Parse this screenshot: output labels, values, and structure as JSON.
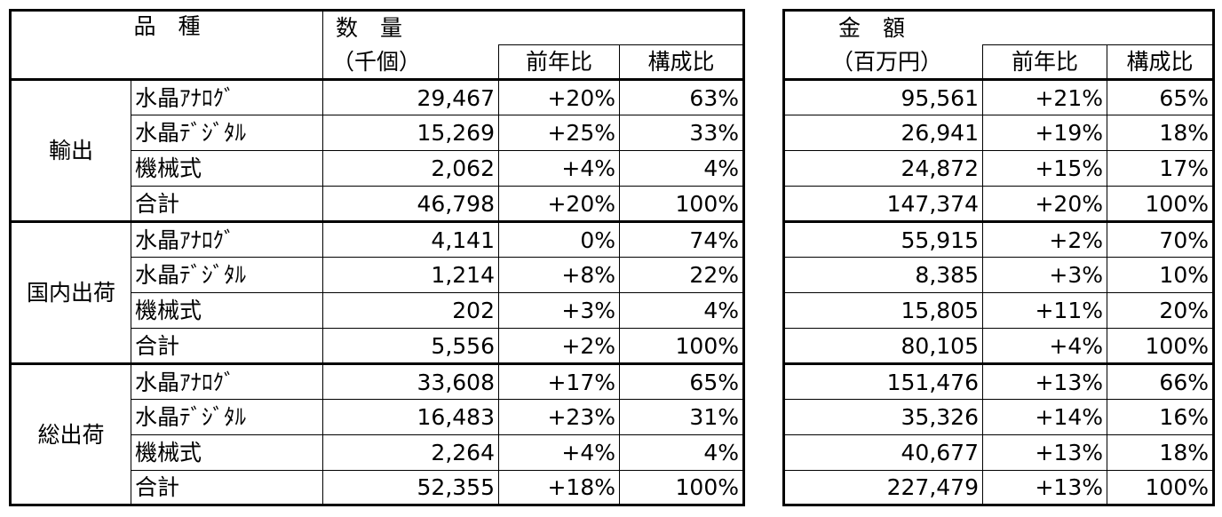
{
  "headers": {
    "hinshu": "品　種",
    "suryo": "数　量",
    "suryo_unit": "（千個）",
    "kingaku": "金　額",
    "kingaku_unit": "（百万円）",
    "yoy": "前年比",
    "share": "構成比"
  },
  "sections": [
    {
      "category": "輸出",
      "rows": [
        {
          "item": "水晶ｱﾅﾛｸﾞ",
          "qty": "29,467",
          "qty_yoy": "+20%",
          "qty_share": "63%",
          "amt": "95,561",
          "amt_yoy": "+21%",
          "amt_share": "65%"
        },
        {
          "item": "水晶ﾃﾞｼﾞﾀﾙ",
          "qty": "15,269",
          "qty_yoy": "+25%",
          "qty_share": "33%",
          "amt": "26,941",
          "amt_yoy": "+19%",
          "amt_share": "18%"
        },
        {
          "item": "機械式",
          "qty": "2,062",
          "qty_yoy": "+4%",
          "qty_share": "4%",
          "amt": "24,872",
          "amt_yoy": "+15%",
          "amt_share": "17%"
        },
        {
          "item": "合計",
          "qty": "46,798",
          "qty_yoy": "+20%",
          "qty_share": "100%",
          "amt": "147,374",
          "amt_yoy": "+20%",
          "amt_share": "100%"
        }
      ]
    },
    {
      "category": "国内出荷",
      "rows": [
        {
          "item": "水晶ｱﾅﾛｸﾞ",
          "qty": "4,141",
          "qty_yoy": "0%",
          "qty_share": "74%",
          "amt": "55,915",
          "amt_yoy": "+2%",
          "amt_share": "70%"
        },
        {
          "item": "水晶ﾃﾞｼﾞﾀﾙ",
          "qty": "1,214",
          "qty_yoy": "+8%",
          "qty_share": "22%",
          "amt": "8,385",
          "amt_yoy": "+3%",
          "amt_share": "10%"
        },
        {
          "item": "機械式",
          "qty": "202",
          "qty_yoy": "+3%",
          "qty_share": "4%",
          "amt": "15,805",
          "amt_yoy": "+11%",
          "amt_share": "20%"
        },
        {
          "item": "合計",
          "qty": "5,556",
          "qty_yoy": "+2%",
          "qty_share": "100%",
          "amt": "80,105",
          "amt_yoy": "+4%",
          "amt_share": "100%"
        }
      ]
    },
    {
      "category": "総出荷",
      "rows": [
        {
          "item": "水晶ｱﾅﾛｸﾞ",
          "qty": "33,608",
          "qty_yoy": "+17%",
          "qty_share": "65%",
          "amt": "151,476",
          "amt_yoy": "+13%",
          "amt_share": "66%"
        },
        {
          "item": "水晶ﾃﾞｼﾞﾀﾙ",
          "qty": "16,483",
          "qty_yoy": "+23%",
          "qty_share": "31%",
          "amt": "35,326",
          "amt_yoy": "+14%",
          "amt_share": "16%"
        },
        {
          "item": "機械式",
          "qty": "2,264",
          "qty_yoy": "+4%",
          "qty_share": "4%",
          "amt": "40,677",
          "amt_yoy": "+13%",
          "amt_share": "18%"
        },
        {
          "item": "合計",
          "qty": "52,355",
          "qty_yoy": "+18%",
          "qty_share": "100%",
          "amt": "227,479",
          "amt_yoy": "+13%",
          "amt_share": "100%"
        }
      ]
    }
  ]
}
